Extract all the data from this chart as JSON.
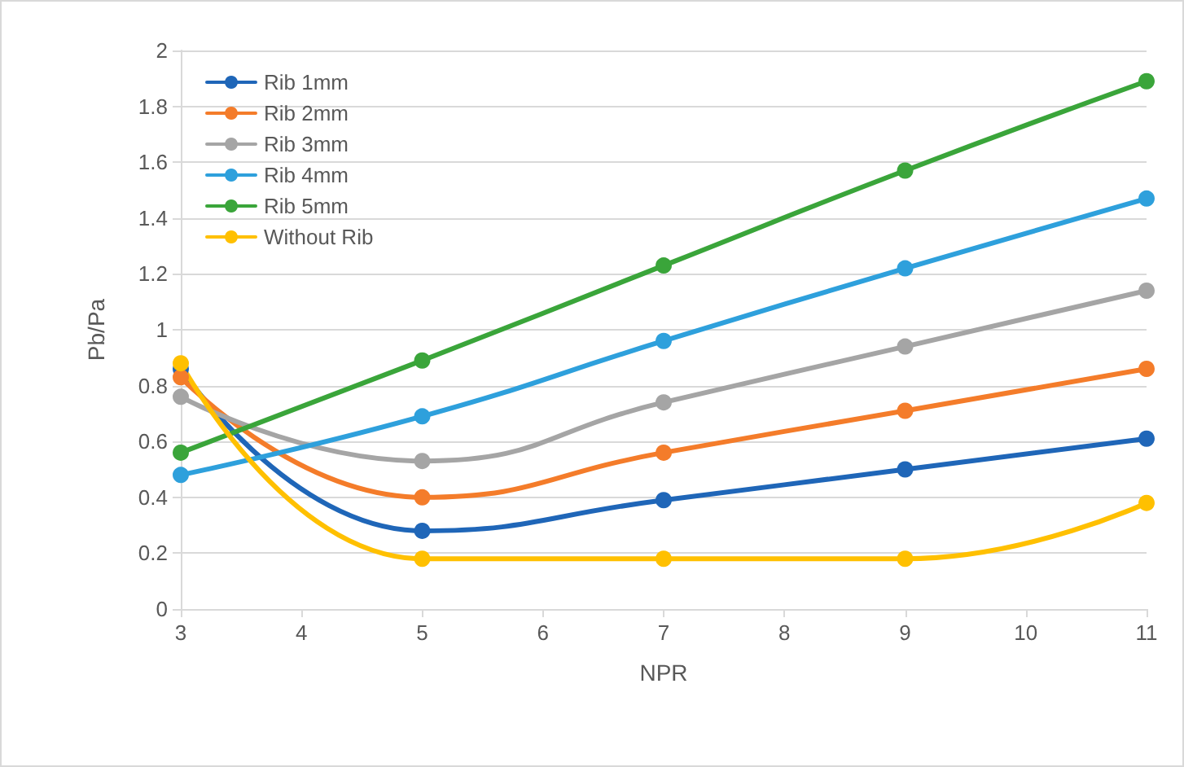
{
  "chart_data": {
    "type": "line",
    "xlabel": "NPR",
    "ylabel": "Pb/Pa",
    "x": [
      3,
      5,
      7,
      9,
      11
    ],
    "series": [
      {
        "name": "Rib 1mm",
        "color": "#1f66b8",
        "values": [
          0.86,
          0.28,
          0.39,
          0.5,
          0.61
        ]
      },
      {
        "name": "Rib 2mm",
        "color": "#f47c2a",
        "values": [
          0.83,
          0.4,
          0.56,
          0.71,
          0.86
        ]
      },
      {
        "name": "Rib 3mm",
        "color": "#a5a5a5",
        "values": [
          0.76,
          0.53,
          0.74,
          0.94,
          1.14
        ]
      },
      {
        "name": "Rib 4mm",
        "color": "#2ea0dc",
        "values": [
          0.48,
          0.69,
          0.96,
          1.22,
          1.47
        ]
      },
      {
        "name": "Rib 5mm",
        "color": "#3aa53a",
        "values": [
          0.56,
          0.89,
          1.23,
          1.57,
          1.89
        ]
      },
      {
        "name": "Without Rib",
        "color": "#ffc000",
        "values": [
          0.88,
          0.18,
          0.18,
          0.18,
          0.38
        ]
      }
    ],
    "xlim": [
      3,
      11
    ],
    "xticks": [
      3,
      4,
      5,
      6,
      7,
      8,
      9,
      10,
      11
    ],
    "ylim": [
      0,
      2
    ],
    "yticks": [
      0,
      0.2,
      0.4,
      0.6,
      0.8,
      1,
      1.2,
      1.4,
      1.6,
      1.8,
      2
    ],
    "grid": "y",
    "legend": "top left",
    "marker": "circle",
    "line_style": "solid"
  }
}
